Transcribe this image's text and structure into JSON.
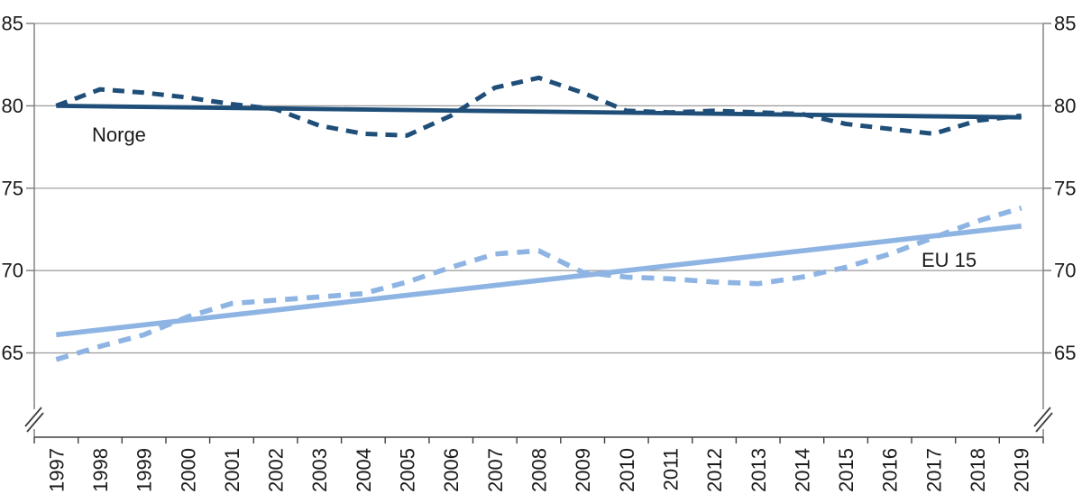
{
  "chart_data": {
    "type": "line",
    "title": "",
    "xlabel": "",
    "ylabel": "",
    "x": [
      1997,
      1998,
      1999,
      2000,
      2001,
      2002,
      2003,
      2004,
      2005,
      2006,
      2007,
      2008,
      2009,
      2010,
      2011,
      2012,
      2013,
      2014,
      2015,
      2016,
      2017,
      2018,
      2019
    ],
    "yticks": [
      85,
      80,
      75,
      70,
      65
    ],
    "ylim": [
      65,
      85
    ],
    "axis_break_at_bottom": true,
    "grid": true,
    "legend_position": "none",
    "series": [
      {
        "name": "norge-actual",
        "style": "dashed",
        "color": "#1F4E79",
        "values": [
          80.0,
          81.0,
          80.8,
          80.5,
          80.1,
          79.8,
          78.8,
          78.3,
          78.2,
          79.4,
          81.1,
          81.7,
          80.8,
          79.7,
          79.6,
          79.7,
          79.6,
          79.5,
          78.9,
          78.6,
          78.3,
          79.1,
          79.4
        ]
      },
      {
        "name": "norge-trend",
        "style": "solid",
        "color": "#1F4E79",
        "trend": true,
        "values": [
          80.0,
          79.3
        ]
      },
      {
        "name": "eu15-actual",
        "style": "dashed",
        "color": "#8EB4E3",
        "values": [
          64.6,
          65.4,
          66.1,
          67.2,
          68.0,
          68.2,
          68.4,
          68.6,
          69.3,
          70.2,
          71.0,
          71.2,
          69.9,
          69.6,
          69.5,
          69.3,
          69.2,
          69.6,
          70.2,
          71.0,
          72.0,
          73.0,
          73.8
        ]
      },
      {
        "name": "eu15-trend",
        "style": "solid",
        "color": "#8EB4E3",
        "trend": true,
        "values": [
          66.1,
          72.7
        ]
      }
    ],
    "annotations": [
      {
        "text": "Norge"
      },
      {
        "text": "EU 15"
      }
    ]
  },
  "colors": {
    "norge": "#1F4E79",
    "eu15": "#8EB4E3",
    "grid": "#999999",
    "axis": "#7a7a7a",
    "axis_dark": "#3f3f3f",
    "text": "#1A1A1A",
    "background": "#FFFFFF"
  }
}
